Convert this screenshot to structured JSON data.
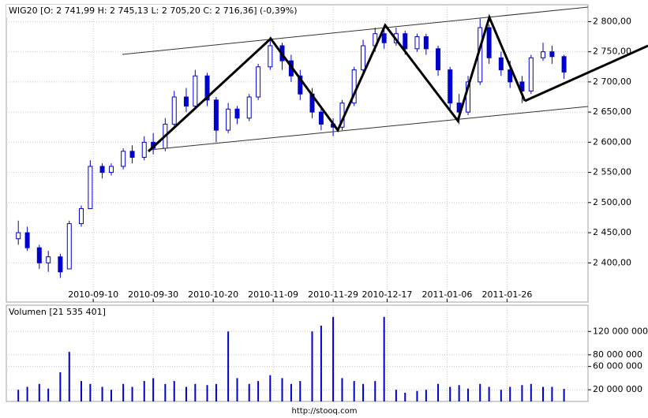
{
  "chart_data": [
    {
      "type": "candlestick",
      "title": "WIG20 [O: 2 741,99 H: 2 745,13 L: 2 705,20 C: 2 716,36] (-0,39%)",
      "color": "#0000cc",
      "x": [
        "2010-08-16",
        "2010-08-19",
        "2010-08-23",
        "2010-08-26",
        "2010-08-30",
        "2010-09-02",
        "2010-09-06",
        "2010-09-09",
        "2010-09-13",
        "2010-09-16",
        "2010-09-20",
        "2010-09-23",
        "2010-09-27",
        "2010-09-30",
        "2010-10-04",
        "2010-10-07",
        "2010-10-11",
        "2010-10-14",
        "2010-10-18",
        "2010-10-21",
        "2010-10-25",
        "2010-10-28",
        "2010-11-01",
        "2010-11-04",
        "2010-11-08",
        "2010-11-12",
        "2010-11-15",
        "2010-11-18",
        "2010-11-22",
        "2010-11-25",
        "2010-11-29",
        "2010-12-02",
        "2010-12-06",
        "2010-12-09",
        "2010-12-13",
        "2010-12-16",
        "2010-12-20",
        "2010-12-23",
        "2010-12-27",
        "2010-12-30",
        "2011-01-03",
        "2011-01-07",
        "2011-01-10",
        "2011-01-13",
        "2011-01-17",
        "2011-01-20",
        "2011-01-24",
        "2011-01-27",
        "2011-01-31",
        "2011-02-03",
        "2011-02-07",
        "2011-02-10",
        "2011-02-14"
      ],
      "open": [
        2440,
        2450,
        2425,
        2400,
        2410,
        2390,
        2465,
        2490,
        2560,
        2550,
        2560,
        2585,
        2575,
        2600,
        2590,
        2630,
        2675,
        2660,
        2710,
        2670,
        2620,
        2655,
        2640,
        2675,
        2725,
        2760,
        2735,
        2710,
        2680,
        2650,
        2630,
        2625,
        2665,
        2720,
        2760,
        2780,
        2765,
        2780,
        2755,
        2775,
        2755,
        2720,
        2665,
        2650,
        2700,
        2790,
        2740,
        2720,
        2700,
        2685,
        2740,
        2750,
        2741.99
      ],
      "high": [
        2470,
        2460,
        2430,
        2420,
        2415,
        2470,
        2495,
        2570,
        2565,
        2565,
        2590,
        2595,
        2610,
        2615,
        2640,
        2685,
        2690,
        2720,
        2715,
        2675,
        2665,
        2660,
        2680,
        2730,
        2775,
        2765,
        2745,
        2720,
        2690,
        2660,
        2640,
        2670,
        2725,
        2770,
        2790,
        2790,
        2790,
        2785,
        2780,
        2780,
        2760,
        2725,
        2680,
        2710,
        2805,
        2795,
        2750,
        2735,
        2710,
        2745,
        2765,
        2760,
        2745.13
      ],
      "low": [
        2430,
        2420,
        2390,
        2385,
        2375,
        2390,
        2460,
        2490,
        2540,
        2545,
        2555,
        2565,
        2570,
        2580,
        2585,
        2625,
        2650,
        2655,
        2660,
        2600,
        2615,
        2630,
        2635,
        2670,
        2720,
        2720,
        2700,
        2670,
        2640,
        2620,
        2610,
        2620,
        2660,
        2715,
        2750,
        2755,
        2760,
        2745,
        2750,
        2745,
        2710,
        2655,
        2630,
        2645,
        2695,
        2730,
        2710,
        2690,
        2665,
        2680,
        2735,
        2730,
        2705.2
      ],
      "close": [
        2450,
        2425,
        2400,
        2410,
        2385,
        2465,
        2490,
        2560,
        2550,
        2560,
        2585,
        2575,
        2600,
        2590,
        2630,
        2675,
        2660,
        2710,
        2670,
        2620,
        2655,
        2640,
        2675,
        2725,
        2760,
        2735,
        2710,
        2680,
        2650,
        2630,
        2625,
        2665,
        2720,
        2760,
        2780,
        2765,
        2780,
        2755,
        2775,
        2755,
        2720,
        2665,
        2650,
        2700,
        2790,
        2740,
        2720,
        2700,
        2685,
        2740,
        2750,
        2742,
        2716.36
      ],
      "xlim": [
        "2010-08-12",
        "2011-02-22"
      ],
      "xticks": [
        "2010-09-10",
        "2010-09-30",
        "2010-10-20",
        "2010-11-09",
        "2010-11-29",
        "2010-12-17",
        "2011-01-06",
        "2011-01-26"
      ],
      "ylim": [
        2335,
        2828
      ],
      "yticks": [
        {
          "value": 2400,
          "label": "2 400,00"
        },
        {
          "value": 2450,
          "label": "2 450,00"
        },
        {
          "value": 2500,
          "label": "2 500,00"
        },
        {
          "value": 2550,
          "label": "2 550,00"
        },
        {
          "value": 2600,
          "label": "2 600,00"
        },
        {
          "value": 2650,
          "label": "2 650,00"
        },
        {
          "value": 2700,
          "label": "2 700,00"
        },
        {
          "value": 2750,
          "label": "2 750,00"
        },
        {
          "value": 2800,
          "label": "2 800,00"
        }
      ],
      "grid": true
    },
    {
      "type": "bar",
      "title": "Volumen [21 535 401]",
      "color": "#0000cc",
      "x": [
        "2010-08-16",
        "2010-08-19",
        "2010-08-23",
        "2010-08-26",
        "2010-08-30",
        "2010-09-02",
        "2010-09-06",
        "2010-09-09",
        "2010-09-13",
        "2010-09-16",
        "2010-09-20",
        "2010-09-23",
        "2010-09-27",
        "2010-09-30",
        "2010-10-04",
        "2010-10-07",
        "2010-10-11",
        "2010-10-14",
        "2010-10-18",
        "2010-10-21",
        "2010-10-25",
        "2010-10-28",
        "2010-11-01",
        "2010-11-04",
        "2010-11-08",
        "2010-11-12",
        "2010-11-15",
        "2010-11-18",
        "2010-11-22",
        "2010-11-25",
        "2010-11-29",
        "2010-12-02",
        "2010-12-06",
        "2010-12-09",
        "2010-12-13",
        "2010-12-16",
        "2010-12-20",
        "2010-12-23",
        "2010-12-27",
        "2010-12-30",
        "2011-01-03",
        "2011-01-07",
        "2011-01-10",
        "2011-01-13",
        "2011-01-17",
        "2011-01-20",
        "2011-01-24",
        "2011-01-27",
        "2011-01-31",
        "2011-02-03",
        "2011-02-07",
        "2011-02-10",
        "2011-02-14"
      ],
      "values": [
        20000000,
        25000000,
        30000000,
        22000000,
        50000000,
        85000000,
        35000000,
        30000000,
        25000000,
        20000000,
        30000000,
        25000000,
        35000000,
        40000000,
        30000000,
        35000000,
        25000000,
        30000000,
        28000000,
        30000000,
        120000000,
        40000000,
        30000000,
        35000000,
        45000000,
        40000000,
        30000000,
        35000000,
        120000000,
        130000000,
        145000000,
        40000000,
        35000000,
        30000000,
        35000000,
        145000000,
        20000000,
        15000000,
        18000000,
        20000000,
        30000000,
        25000000,
        28000000,
        22000000,
        30000000,
        25000000,
        20000000,
        25000000,
        28000000,
        30000000,
        25000000,
        25000000,
        21535401
      ],
      "ylim": [
        0,
        165000000
      ],
      "yticks": [
        {
          "value": 20000000,
          "label": "20 000 000"
        },
        {
          "value": 60000000,
          "label": "60 000 000"
        },
        {
          "value": 80000000,
          "label": "80 000 000"
        },
        {
          "value": 120000000,
          "label": "120 000 000"
        }
      ],
      "grid": true
    }
  ],
  "footer": "http://stooq.com"
}
